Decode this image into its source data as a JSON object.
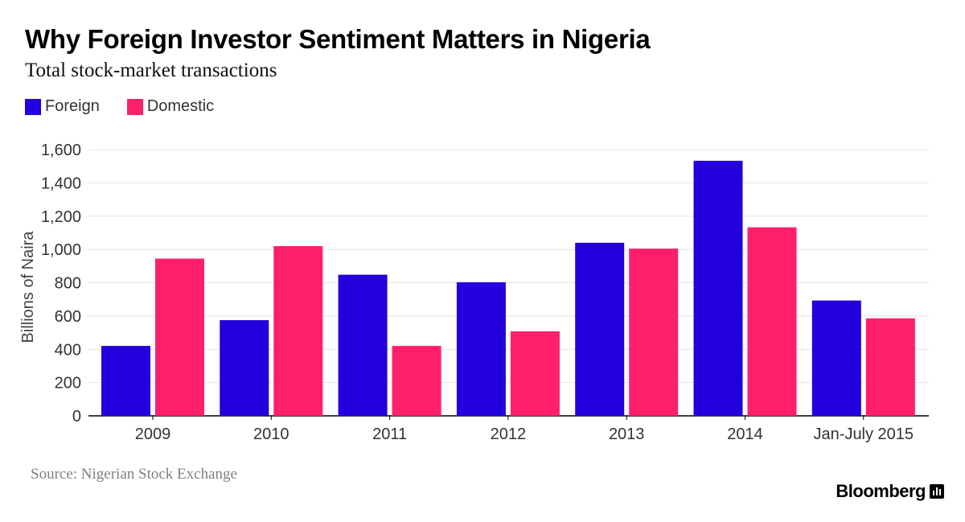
{
  "header": {
    "title": "Why Foreign Investor Sentiment Matters in Nigeria",
    "subtitle": "Total stock-market transactions"
  },
  "legend": {
    "items": [
      {
        "label": "Foreign",
        "color": "#2200dd"
      },
      {
        "label": "Domestic",
        "color": "#ff1f6b"
      }
    ],
    "placement": "top-left"
  },
  "footer": {
    "source": "Source: Nigerian Stock Exchange",
    "brand": "Bloomberg",
    "brand_icon": "bloomberg-chart-icon"
  },
  "chart_data": {
    "type": "bar",
    "title": "Why Foreign Investor Sentiment Matters in Nigeria",
    "subtitle": "Total stock-market transactions",
    "xlabel": "",
    "ylabel": "Billions of Naira",
    "categories": [
      "2009",
      "2010",
      "2011",
      "2012",
      "2013",
      "2014",
      "Jan-July 2015"
    ],
    "series": [
      {
        "name": "Foreign",
        "color": "#2200dd",
        "values": [
          420,
          575,
          848,
          803,
          1040,
          1533,
          693
        ]
      },
      {
        "name": "Domestic",
        "color": "#ff1f6b",
        "values": [
          945,
          1020,
          420,
          508,
          1005,
          1133,
          586
        ]
      }
    ],
    "ylim": [
      0,
      1600
    ],
    "yticks": [
      0,
      200,
      400,
      600,
      800,
      1000,
      1200,
      1400,
      1600
    ],
    "ytick_labels": [
      "0",
      "200",
      "400",
      "600",
      "800",
      "1,000",
      "1,200",
      "1,400",
      "1,600"
    ],
    "grid": true,
    "legend_placement": "top-left"
  }
}
